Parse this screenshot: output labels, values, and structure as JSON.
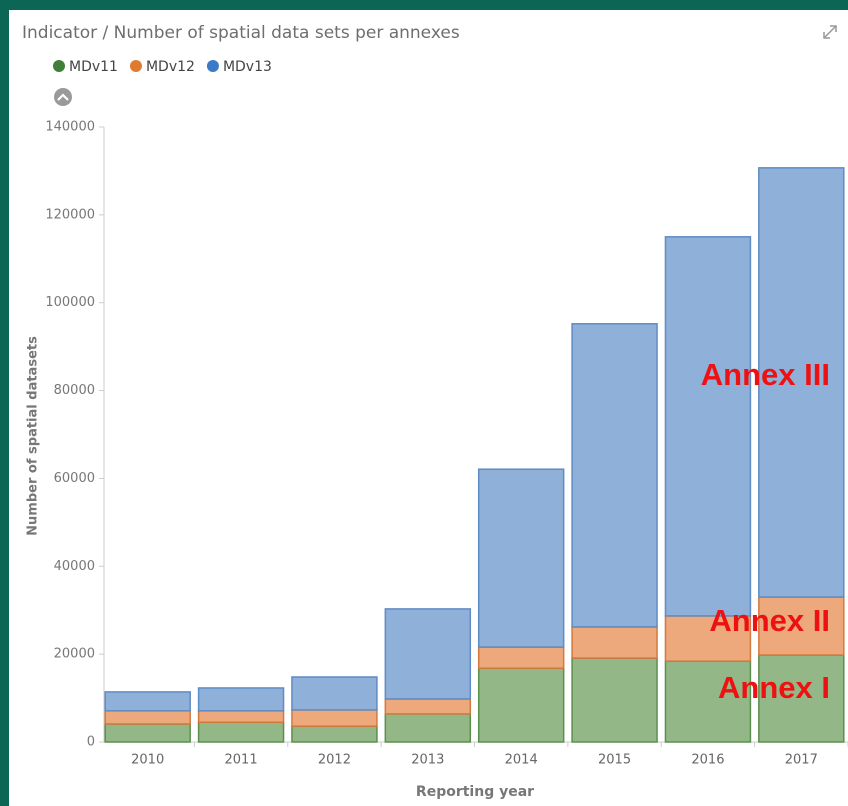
{
  "chart_data": {
    "type": "stacked-bar",
    "title": "Indicator / Number of spatial data sets per annexes",
    "x_label": "Reporting year",
    "y_label": "Number of spatial datasets",
    "categories": [
      "2010",
      "2011",
      "2012",
      "2013",
      "2014",
      "2015",
      "2016",
      "2017"
    ],
    "series": [
      {
        "name": "MDv11",
        "color": "#93b786",
        "values": [
          4100,
          4500,
          3600,
          6400,
          16800,
          19100,
          18400,
          19800
        ]
      },
      {
        "name": "MDv12",
        "color": "#eda87c",
        "values": [
          3000,
          2600,
          3700,
          3400,
          4800,
          7100,
          10300,
          13200
        ]
      },
      {
        "name": "MDv13",
        "color": "#8fb0d8",
        "values": [
          4300,
          5200,
          7500,
          20500,
          40500,
          69000,
          86300,
          97700
        ]
      }
    ],
    "ylim": [
      0,
      140000
    ],
    "yticks": [
      0,
      20000,
      40000,
      60000,
      80000,
      100000,
      120000,
      140000
    ],
    "grid": false,
    "legend": "top-left",
    "annotations": [
      "Annex III",
      "Annex II",
      "Annex I"
    ]
  }
}
